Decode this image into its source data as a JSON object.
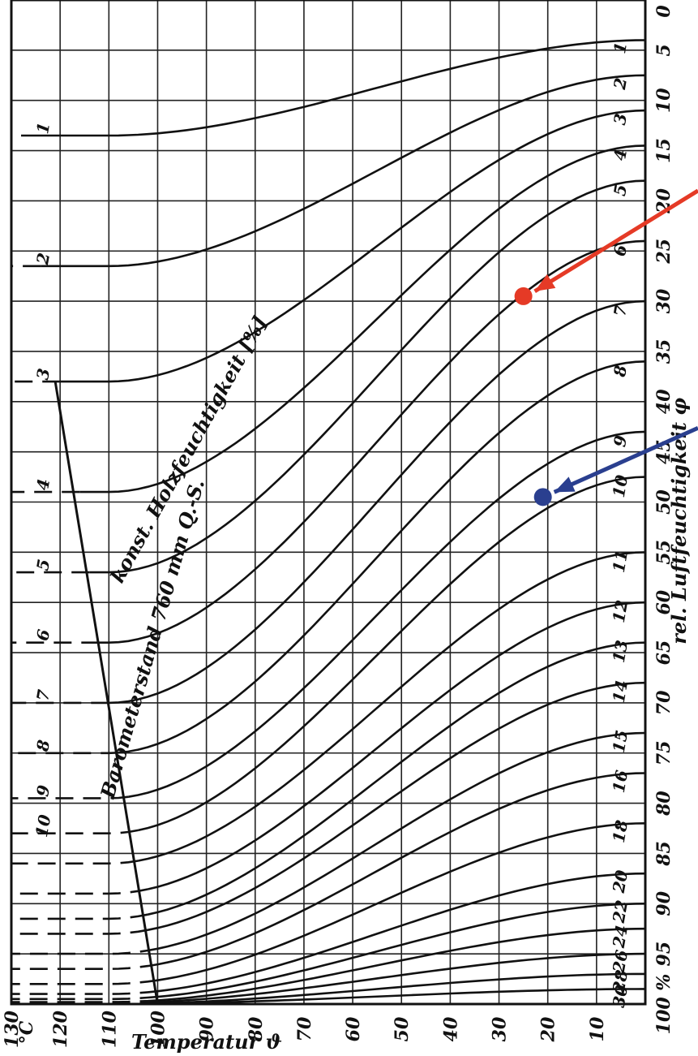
{
  "chart_data": {
    "type": "line",
    "title": "",
    "xlabel": "Temperatur ϑ",
    "ylabel": "rel. Luftfeuchtigkeit φ",
    "x_unit_label": "°C",
    "x_ticks": [
      130,
      120,
      110,
      100,
      90,
      80,
      70,
      60,
      50,
      40,
      30,
      20,
      10
    ],
    "y_ticks": [
      0,
      5,
      10,
      15,
      20,
      25,
      30,
      35,
      40,
      45,
      50,
      55,
      60,
      65,
      70,
      75,
      80,
      85,
      90,
      "95",
      "100 %"
    ],
    "xlim": [
      0,
      130
    ],
    "ylim": [
      0,
      100
    ],
    "x_reversed": true,
    "grid": true,
    "series_annotation": "konst. Holzfeuchtigkeit [%]",
    "boundary_label": "Barometerstand 760 mm Q.-S.",
    "boundary_line": {
      "x": [
        121,
        100
      ],
      "y": [
        38,
        100
      ]
    },
    "series": [
      {
        "label": "1",
        "y100": 13.5,
        "y0": 4
      },
      {
        "label": "2",
        "y100": 26.5,
        "y0": 7.5
      },
      {
        "label": "3",
        "y100": 38,
        "y0": 11
      },
      {
        "label": "4",
        "y100": 49,
        "y0": 14.5
      },
      {
        "label": "5",
        "y100": 57,
        "y0": 18
      },
      {
        "label": "6",
        "y100": 64,
        "y0": 24
      },
      {
        "label": "7",
        "y100": 70,
        "y0": 30
      },
      {
        "label": "8",
        "y100": 75,
        "y0": 36
      },
      {
        "label": "9",
        "y100": 79.5,
        "y0": 43
      },
      {
        "label": "10",
        "y100": 83,
        "y0": 47.5
      },
      {
        "label": "11",
        "y100": 86,
        "y0": 55
      },
      {
        "label": "12",
        "y100": 89,
        "y0": 60
      },
      {
        "label": "13",
        "y100": 91.5,
        "y0": 64
      },
      {
        "label": "14",
        "y100": 93,
        "y0": 68
      },
      {
        "label": "15",
        "y100": 95,
        "y0": 73
      },
      {
        "label": "16",
        "y100": 96.5,
        "y0": 77
      },
      {
        "label": "18",
        "y100": 98,
        "y0": 82
      },
      {
        "label": "20",
        "y100": 99,
        "y0": 87
      },
      {
        "label": "22",
        "y100": 99.5,
        "y0": 90
      },
      {
        "label": "24",
        "y100": 99.8,
        "y0": 92.5
      },
      {
        "label": "26",
        "y100": 99.9,
        "y0": 95
      },
      {
        "label": "28",
        "y100": 100,
        "y0": 97
      },
      {
        "label": "30",
        "y100": 100,
        "y0": 98.5
      }
    ],
    "markers": [
      {
        "color": "#e53a26",
        "x": 25,
        "y": 29.5
      },
      {
        "color": "#2a3f8f",
        "x": 21,
        "y": 49.5
      }
    ]
  }
}
